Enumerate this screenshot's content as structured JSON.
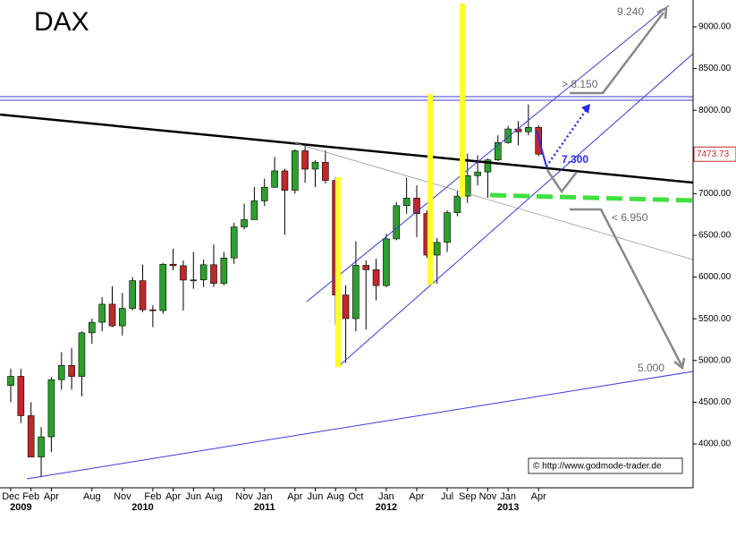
{
  "chart_data": {
    "type": "candlestick",
    "title": "DAX",
    "categories": [
      "Dec",
      null,
      "Feb",
      null,
      "Apr",
      null,
      null,
      null,
      "Aug",
      null,
      null,
      "Nov",
      null,
      null,
      "Feb",
      null,
      "Apr",
      null,
      "Jun",
      null,
      "Aug",
      null,
      null,
      "Nov",
      null,
      "Jan",
      null,
      null,
      "Apr",
      null,
      "Jun",
      null,
      "Aug",
      null,
      "Oct",
      null,
      null,
      "Jan",
      null,
      null,
      "Apr",
      null,
      null,
      "Jul",
      null,
      "Sep",
      null,
      "Nov",
      null,
      "Jan",
      null,
      null,
      "Apr"
    ],
    "year_labels": [
      null,
      "2009",
      null,
      null,
      null,
      null,
      null,
      null,
      null,
      null,
      null,
      null,
      null,
      "2010",
      null,
      null,
      null,
      null,
      null,
      null,
      null,
      null,
      null,
      null,
      null,
      "2011",
      null,
      null,
      null,
      null,
      null,
      null,
      null,
      null,
      null,
      null,
      null,
      "2012",
      null,
      null,
      null,
      null,
      null,
      null,
      null,
      null,
      null,
      null,
      null,
      "2013",
      null,
      null,
      null
    ],
    "open": [
      4700,
      4810,
      4338,
      3843,
      4085,
      4770,
      4941,
      4809,
      5332,
      5458,
      5675,
      5415,
      5625,
      5957,
      5608,
      5598,
      6154,
      6136,
      5964,
      5966,
      6148,
      5925,
      6229,
      6601,
      6688,
      6914,
      7077,
      7273,
      7041,
      7514,
      7294,
      7376,
      7159,
      5785,
      5502,
      6141,
      6088,
      5898,
      6458,
      6856,
      6947,
      6761,
      6264,
      6416,
      6772,
      6971,
      7216,
      7260,
      7405,
      7612,
      7776,
      7742,
      7795
    ],
    "high": [
      4900,
      4900,
      4500,
      4200,
      4800,
      5100,
      5150,
      5350,
      5500,
      5760,
      5890,
      5810,
      6000,
      6150,
      5660,
      6170,
      6340,
      6200,
      6300,
      6210,
      6390,
      6300,
      6650,
      6880,
      7080,
      7180,
      7440,
      7300,
      7530,
      7600,
      7400,
      7520,
      7200,
      5900,
      6430,
      6200,
      6220,
      6520,
      6900,
      7190,
      7100,
      6800,
      6470,
      6800,
      7030,
      7480,
      7460,
      7420,
      7700,
      7810,
      7870,
      8070,
      7820
    ],
    "low": [
      4500,
      4250,
      3850,
      3600,
      3900,
      4650,
      4650,
      4570,
      5200,
      5350,
      5400,
      5300,
      5600,
      5580,
      5400,
      5560,
      6080,
      5600,
      5860,
      5880,
      5880,
      5900,
      6160,
      6570,
      6690,
      6850,
      7070,
      6510,
      7000,
      7130,
      7080,
      7120,
      5430,
      4970,
      5350,
      5370,
      5720,
      5880,
      6440,
      6760,
      6480,
      6230,
      5920,
      6300,
      6730,
      6890,
      7100,
      6950,
      7390,
      7600,
      7580,
      7700,
      7450
    ],
    "close": [
      4810,
      4338,
      3843,
      4085,
      4770,
      4941,
      4809,
      5332,
      5458,
      5675,
      5415,
      5625,
      5957,
      5608,
      5598,
      6154,
      6136,
      5964,
      5966,
      6148,
      5925,
      6229,
      6601,
      6688,
      6914,
      7077,
      7273,
      7041,
      7514,
      7294,
      7376,
      7159,
      5785,
      5502,
      6141,
      6088,
      5898,
      6458,
      6856,
      6947,
      6761,
      6264,
      6416,
      6772,
      6971,
      7216,
      7260,
      7405,
      7612,
      7776,
      7742,
      7795,
      7473.73
    ],
    "up_color": "#2e9e2e",
    "down_color": "#c0282a",
    "ylim": [
      3474,
      9322
    ],
    "yticks": [
      {
        "value": 4000,
        "label": "4000.00"
      },
      {
        "value": 4500,
        "label": "4500.00"
      },
      {
        "value": 5000,
        "label": "5000.00"
      },
      {
        "value": 5500,
        "label": "5500.00"
      },
      {
        "value": 6000,
        "label": "6000.00"
      },
      {
        "value": 6500,
        "label": "6500.00"
      },
      {
        "value": 7000,
        "label": "7000.00"
      },
      {
        "value": 7500,
        "label": "7500.00"
      },
      {
        "value": 8000,
        "label": "8000.00"
      },
      {
        "value": 8500,
        "label": "8500.00"
      },
      {
        "value": 9000,
        "label": "9000.00"
      }
    ],
    "annotations": [
      "9.240",
      "> 8.150",
      "7.300",
      "< 6.950",
      "5.000"
    ],
    "source": "© http://www.godmode-trader.de"
  }
}
